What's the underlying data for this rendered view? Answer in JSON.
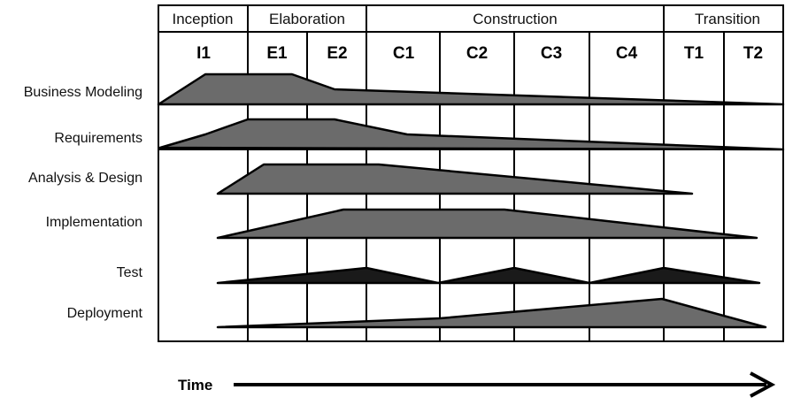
{
  "phases": [
    {
      "label": "Inception"
    },
    {
      "label": "Elaboration"
    },
    {
      "label": "Construction"
    },
    {
      "label": "Transition"
    }
  ],
  "iterations": [
    "I1",
    "E1",
    "E2",
    "C1",
    "C2",
    "C3",
    "C4",
    "T1",
    "T2"
  ],
  "disciplines": [
    {
      "label": "Business Modeling"
    },
    {
      "label": "Requirements"
    },
    {
      "label": "Analysis & Design"
    },
    {
      "label": "Implementation"
    },
    {
      "label": "Test"
    },
    {
      "label": "Deployment"
    }
  ],
  "time_label": "Time"
}
